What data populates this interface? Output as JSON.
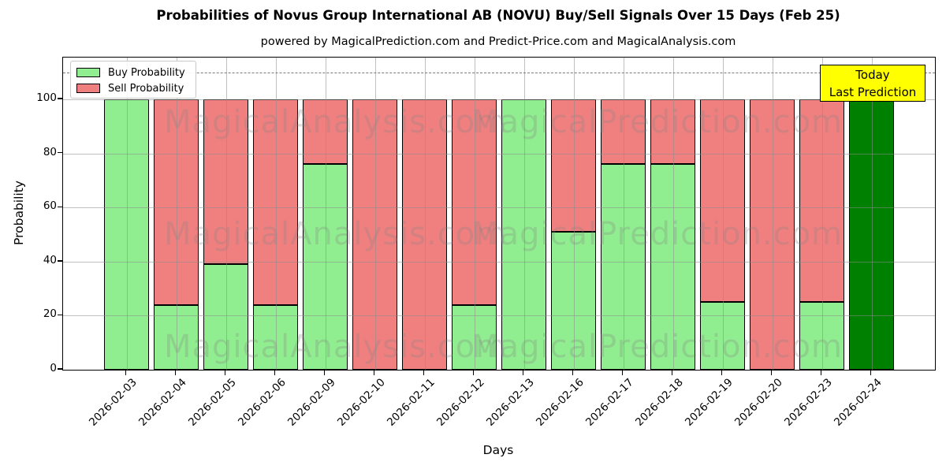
{
  "header": {
    "title": "Probabilities of Novus Group International AB (NOVU) Buy/Sell Signals Over 15 Days (Feb 25)",
    "subtitle": "powered by MagicalPrediction.com and Predict-Price.com and MagicalAnalysis.com"
  },
  "chart_data": {
    "type": "bar",
    "stacked": true,
    "title": "Probabilities of Novus Group International AB (NOVU) Buy/Sell Signals Over 15 Days (Feb 25)",
    "xlabel": "Days",
    "ylabel": "Probability",
    "ylim": [
      0,
      115.5
    ],
    "yticks": [
      0,
      20,
      40,
      60,
      80,
      100
    ],
    "grid": true,
    "legend_position": "upper-left",
    "categories": [
      "2026-02-03",
      "2026-02-04",
      "2026-02-05",
      "2026-02-06",
      "2026-02-09",
      "2026-02-10",
      "2026-02-11",
      "2026-02-12",
      "2026-02-13",
      "2026-02-16",
      "2026-02-17",
      "2026-02-18",
      "2026-02-19",
      "2026-02-20",
      "2026-02-23",
      "2026-02-24"
    ],
    "series": [
      {
        "name": "Buy Probability",
        "color": "#90EE90",
        "values": [
          100,
          24,
          39,
          24,
          76,
          0,
          0,
          24,
          100,
          51,
          76,
          76,
          25,
          0,
          25,
          100
        ]
      },
      {
        "name": "Sell Probability",
        "color": "#F08080",
        "values": [
          0,
          76,
          61,
          76,
          24,
          100,
          100,
          76,
          0,
          49,
          24,
          24,
          75,
          100,
          75,
          0
        ]
      }
    ],
    "today_index": 15,
    "today_color": "#008000",
    "reference_line": {
      "value": 110,
      "style": "dashed",
      "color": "#7a7a7a"
    }
  },
  "legend": {
    "items": [
      {
        "label": "Buy Probability",
        "color": "#90EE90"
      },
      {
        "label": "Sell Probability",
        "color": "#F08080"
      }
    ]
  },
  "annotation": {
    "line1": "Today",
    "line2": "Last Prediction",
    "bg_color": "#FFFF00"
  },
  "watermarks": {
    "left_text": "MagicalAnalysis.com",
    "right_text": "MagicalPrediction.com"
  },
  "axis": {
    "xlabel": "Days",
    "ylabel": "Probability"
  }
}
